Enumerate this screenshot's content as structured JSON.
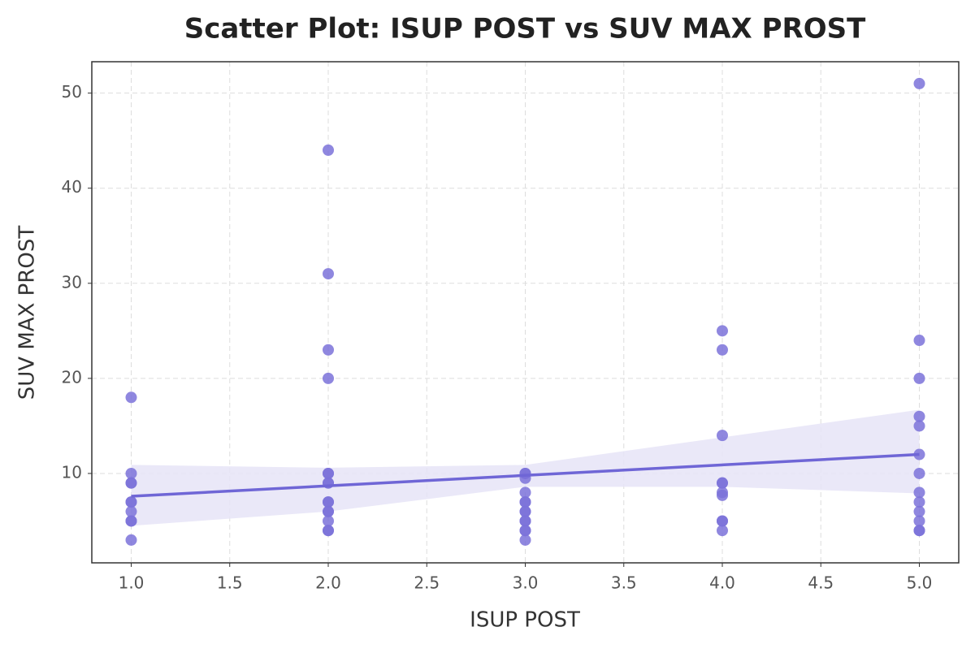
{
  "chart_data": {
    "type": "scatter",
    "title": "Scatter Plot: ISUP POST vs SUV MAX PROST",
    "x_label": "ISUP POST",
    "y_label": "SUV MAX PROST",
    "xlim": [
      0.8,
      5.2
    ],
    "ylim": [
      0.6,
      53.3
    ],
    "xticks": [
      {
        "value": 1,
        "label": "1.0"
      },
      {
        "value": 1.5,
        "label": "1.5"
      },
      {
        "value": 2,
        "label": "2.0"
      },
      {
        "value": 2.5,
        "label": "2.5"
      },
      {
        "value": 3,
        "label": "3.0"
      },
      {
        "value": 3.5,
        "label": "3.5"
      },
      {
        "value": 4,
        "label": "4.0"
      },
      {
        "value": 4.5,
        "label": "4.5"
      },
      {
        "value": 5,
        "label": "5.0"
      }
    ],
    "yticks": [
      10,
      20,
      30,
      40,
      50
    ],
    "grid": true,
    "points": {
      "color": "#7b72d9",
      "x": [
        1,
        1,
        1,
        1,
        1,
        1,
        1,
        1,
        1,
        1,
        2,
        2,
        2,
        2,
        2,
        2,
        2,
        2,
        2,
        2,
        2,
        2,
        2,
        2,
        2,
        3,
        3,
        3,
        3,
        3,
        3,
        3,
        3,
        3,
        3,
        3,
        3,
        3,
        4,
        4,
        4,
        4,
        4,
        4,
        4,
        4,
        4,
        4,
        5,
        5,
        5,
        5,
        5,
        5,
        5,
        5,
        5,
        5,
        5,
        5,
        5
      ],
      "y": [
        18,
        10,
        9,
        9,
        7,
        7,
        6,
        5,
        5,
        3,
        44,
        31,
        23,
        20,
        10,
        10,
        9,
        9,
        7,
        7,
        6,
        6,
        5,
        4,
        4,
        10,
        10,
        9.5,
        8,
        7,
        7,
        6,
        6,
        5,
        5,
        4,
        4,
        3,
        25,
        23,
        14,
        9,
        9,
        8,
        7.7,
        5,
        5,
        4,
        51,
        24,
        20,
        16,
        15,
        12,
        10,
        8,
        7,
        6,
        5,
        4,
        4
      ]
    },
    "regression": {
      "color": "#6f66d6",
      "x": [
        1,
        5
      ],
      "y": [
        7.6,
        12
      ]
    },
    "band": {
      "color": "#e6e4f7",
      "x": [
        1,
        2,
        3,
        4,
        5
      ],
      "lower": [
        4.5,
        6.0,
        8.6,
        8.6,
        7.9
      ],
      "upper": [
        10.9,
        10.6,
        10.9,
        13.8,
        16.7
      ]
    }
  }
}
